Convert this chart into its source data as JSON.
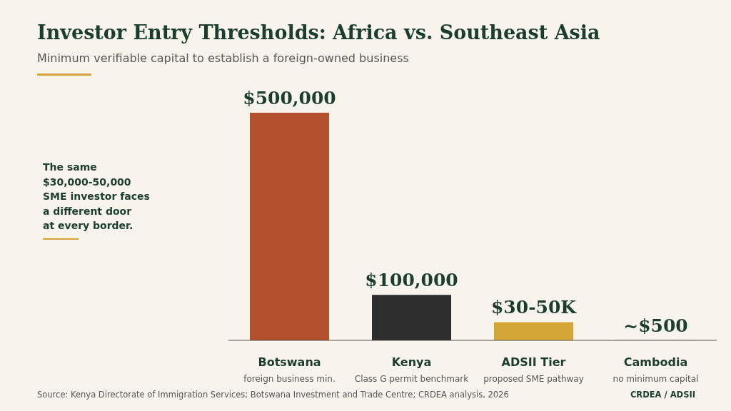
{
  "chart_data": {
    "type": "bar",
    "title": "Investor Entry Thresholds: Africa vs. Southeast Asia",
    "subtitle": "Minimum verifiable capital to establish a foreign-owned business",
    "categories": [
      "Botswana",
      "Kenya",
      "ADSII Tier",
      "Cambodia"
    ],
    "values": [
      500000,
      100000,
      40000,
      500
    ],
    "colors": [
      "#b5502e",
      "#2d2d2d",
      "#d4a537",
      "#1a3d2e"
    ],
    "value_labels": [
      "$500,000",
      "$100,000",
      "$30-50K",
      "~$500"
    ],
    "annotations": [
      "The same\n$30,000-50,000\nSME investor faces\na different door\nat every border.",
      "Source: Kenya Directorate of Immigration Services; Botswana Investment and Trade Centre; CRDEA analysis, 2026",
      "CRDEA / ADSII",
      "foreign business min.",
      "Class G permit benchmark",
      "proposed SME pathway",
      "no minimum capital"
    ]
  }
}
